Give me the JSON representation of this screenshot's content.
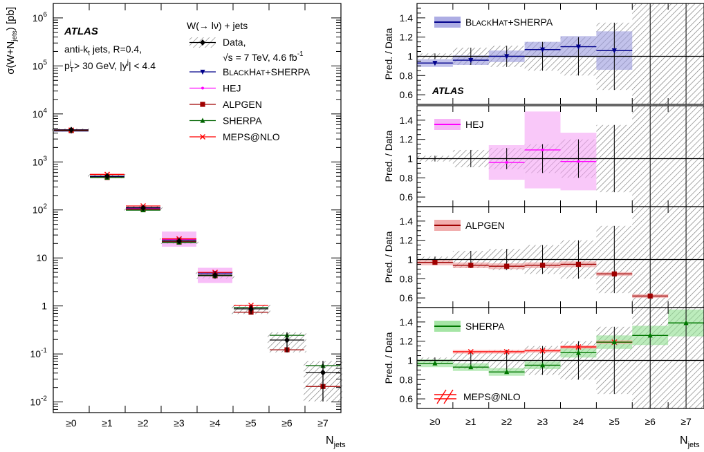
{
  "chart_data": [
    {
      "type": "scatter",
      "ylabel": "σ(W+N_jets) [pb]",
      "xlabel": "N_jets",
      "yscale": "log",
      "ylim": [
        0.006,
        2000000
      ],
      "categories": [
        "≥0",
        "≥1",
        "≥2",
        "≥3",
        "≥4",
        "≥5",
        "≥6",
        "≥7"
      ],
      "y_tick_labels": [
        "10^-2",
        "10^-1",
        "1",
        "10",
        "10^2",
        "10^3",
        "10^4",
        "10^5",
        "10^6"
      ],
      "experiment": "ATLAS",
      "jets_line1": "anti-k_t jets, R=0.4,",
      "jets_line2": "p_T^j > 30 GeV, |y^j| < 4.4",
      "legend_header": "W(→ lν) + jets",
      "data_label_1": "Data,",
      "data_label_2": "√s = 7 TeV, 4.6 fb^-1",
      "data_values": [
        4650,
        505,
        110,
        22.5,
        4.4,
        0.87,
        0.195,
        0.041
      ],
      "data_unc_rel": [
        0.07,
        0.09,
        0.11,
        0.13,
        0.16,
        0.22,
        0.45,
        0.75
      ],
      "series": [
        {
          "name": "BLACKHAT+SHERPA",
          "color": "#00008B",
          "marker": "tri-down",
          "values": [
            4400,
            490,
            112,
            24,
            4.85,
            0.93,
            null,
            null
          ]
        },
        {
          "name": "HEJ",
          "color": "#FF00FF",
          "marker": "dot",
          "values": [
            4650,
            505,
            107,
            24.5,
            4.3,
            null,
            null,
            null
          ]
        },
        {
          "name": "ALPGEN",
          "color": "#A00000",
          "marker": "square",
          "values": [
            4500,
            475,
            103,
            21.5,
            4.25,
            0.74,
            0.122,
            0.021
          ]
        },
        {
          "name": "SHERPA",
          "color": "#006400",
          "marker": "tri-up",
          "values": [
            4550,
            475,
            99,
            21,
            4.3,
            0.93,
            0.245,
            0.057
          ]
        },
        {
          "name": "MEPS@NLO",
          "color": "#FF0000",
          "marker": "cross",
          "values": [
            4600,
            550,
            121,
            25,
            5.0,
            1.03,
            null,
            null
          ]
        }
      ]
    },
    {
      "type": "ratio",
      "ylabel": "Pred. / Data",
      "xlabel": "N_jets",
      "ylim": [
        0.5,
        1.55
      ],
      "y_ticks": [
        "0.6",
        "0.8",
        "1",
        "1.2",
        "1.4"
      ],
      "categories": [
        "≥0",
        "≥1",
        "≥2",
        "≥3",
        "≥4",
        "≥5",
        "≥6",
        "≥7"
      ],
      "data_unc": [
        0.03,
        0.09,
        0.11,
        0.15,
        0.2,
        0.35,
        1.0,
        1.0
      ],
      "experiment": "ATLAS",
      "panels": [
        {
          "name": "BLACKHAT+SHERPA",
          "color": "#00008B",
          "band": "#9999DD",
          "marker": "tri-down",
          "values": [
            0.93,
            0.96,
            1.0,
            1.07,
            1.1,
            1.06,
            null,
            null
          ],
          "unc": [
            0.04,
            0.05,
            0.06,
            0.08,
            0.11,
            0.2,
            null,
            null
          ]
        },
        {
          "name": "HEJ",
          "color": "#FF00FF",
          "band": "#F5A3F5",
          "marker": "dot",
          "values": [
            null,
            null,
            0.96,
            1.09,
            0.97,
            null,
            null,
            null
          ],
          "unc": [
            null,
            null,
            0.18,
            0.4,
            0.3,
            null,
            null,
            null
          ]
        },
        {
          "name": "ALPGEN",
          "color": "#A00000",
          "band": "#EE9999",
          "marker": "square",
          "values": [
            0.97,
            0.94,
            0.93,
            0.94,
            0.95,
            0.85,
            0.62,
            null
          ],
          "unc": [
            0.03,
            0.03,
            0.03,
            0.03,
            0.03,
            0.02,
            0.02,
            null
          ]
        },
        {
          "name": "SHERPA",
          "color": "#007700",
          "band": "#8FDF8F",
          "marker": "tri-up",
          "values": [
            0.97,
            0.93,
            0.88,
            0.95,
            1.08,
            1.19,
            1.26,
            1.39
          ],
          "unc": [
            0.04,
            0.04,
            0.04,
            0.04,
            0.05,
            0.07,
            0.1,
            0.14
          ],
          "series2": {
            "name": "MEPS@NLO",
            "color": "#FF0000",
            "marker": "cross",
            "values": [
              null,
              1.09,
              1.09,
              1.1,
              1.14,
              1.19,
              null,
              null
            ],
            "unc": [
              null,
              0.02,
              0.02,
              0.02,
              0.02,
              0.02,
              null,
              null
            ]
          }
        }
      ]
    }
  ]
}
